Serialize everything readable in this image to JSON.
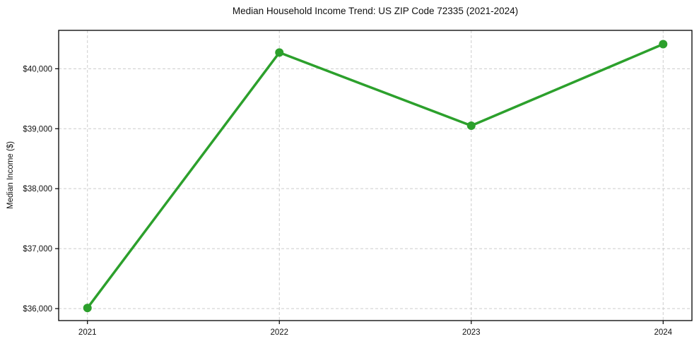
{
  "chart_data": {
    "type": "line",
    "title": "Median Household Income Trend: US ZIP Code 72335 (2021-2024)",
    "xlabel": "",
    "ylabel": "Median Income ($)",
    "x": [
      2021,
      2022,
      2023,
      2024
    ],
    "series": [
      {
        "name": "Median Household Income",
        "values": [
          36010,
          40270,
          39050,
          40410
        ]
      }
    ],
    "x_tick_labels": [
      "2021",
      "2022",
      "2023",
      "2024"
    ],
    "y_ticks": [
      36000,
      37000,
      38000,
      39000,
      40000
    ],
    "y_tick_labels": [
      "$36,000",
      "$37,000",
      "$38,000",
      "$39,000",
      "$40,000"
    ],
    "xlim": [
      2020.85,
      2024.15
    ],
    "ylim": [
      35800,
      40640
    ],
    "grid": true,
    "grid_style": "dashed",
    "legend": false,
    "line_color": "#2ca02c",
    "marker": "circle",
    "grid_color": "#cccccc",
    "spine_color": "#000000",
    "text_color": "#111111",
    "background": "#ffffff"
  }
}
